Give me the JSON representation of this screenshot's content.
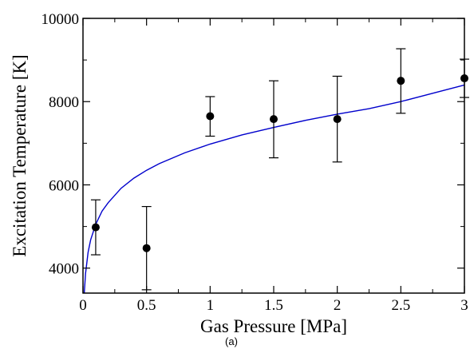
{
  "chart_data": {
    "type": "scatter",
    "title": "",
    "xlabel": "Gas Pressure [MPa]",
    "ylabel": "Excitation Temperature [K]",
    "caption": "(a)",
    "xlim": [
      0,
      3
    ],
    "ylim": [
      3400,
      10000
    ],
    "x_ticks": [
      0,
      0.5,
      1,
      1.5,
      2,
      2.5,
      3
    ],
    "x_tick_labels": [
      "0",
      "0.5",
      "1",
      "1.5",
      "2",
      "2.5",
      "3"
    ],
    "y_ticks": [
      4000,
      6000,
      8000,
      10000
    ],
    "y_tick_labels": [
      "4000",
      "6000",
      "8000",
      "10000"
    ],
    "grid": false,
    "points": {
      "x": [
        0.1,
        0.5,
        1.0,
        1.5,
        2.0,
        2.5,
        3.0
      ],
      "y": [
        4980,
        4480,
        7650,
        7580,
        7580,
        8500,
        8560
      ],
      "yerr_low": [
        4320,
        3480,
        7170,
        6650,
        6550,
        7720,
        8100
      ],
      "yerr_high": [
        5640,
        5480,
        8120,
        8500,
        8610,
        9270,
        9020
      ],
      "marker_color": "#000000"
    },
    "fit_curve": {
      "style": "line",
      "color": "#0000cc",
      "x": [
        0.01,
        0.02,
        0.04,
        0.06,
        0.1,
        0.15,
        0.2,
        0.3,
        0.4,
        0.5,
        0.6,
        0.8,
        1.0,
        1.25,
        1.5,
        1.75,
        2.0,
        2.25,
        2.5,
        2.75,
        3.0
      ],
      "y": [
        3400,
        3870,
        4380,
        4680,
        5050,
        5370,
        5580,
        5920,
        6160,
        6350,
        6510,
        6770,
        6980,
        7200,
        7380,
        7550,
        7700,
        7830,
        8000,
        8200,
        8400
      ]
    }
  }
}
